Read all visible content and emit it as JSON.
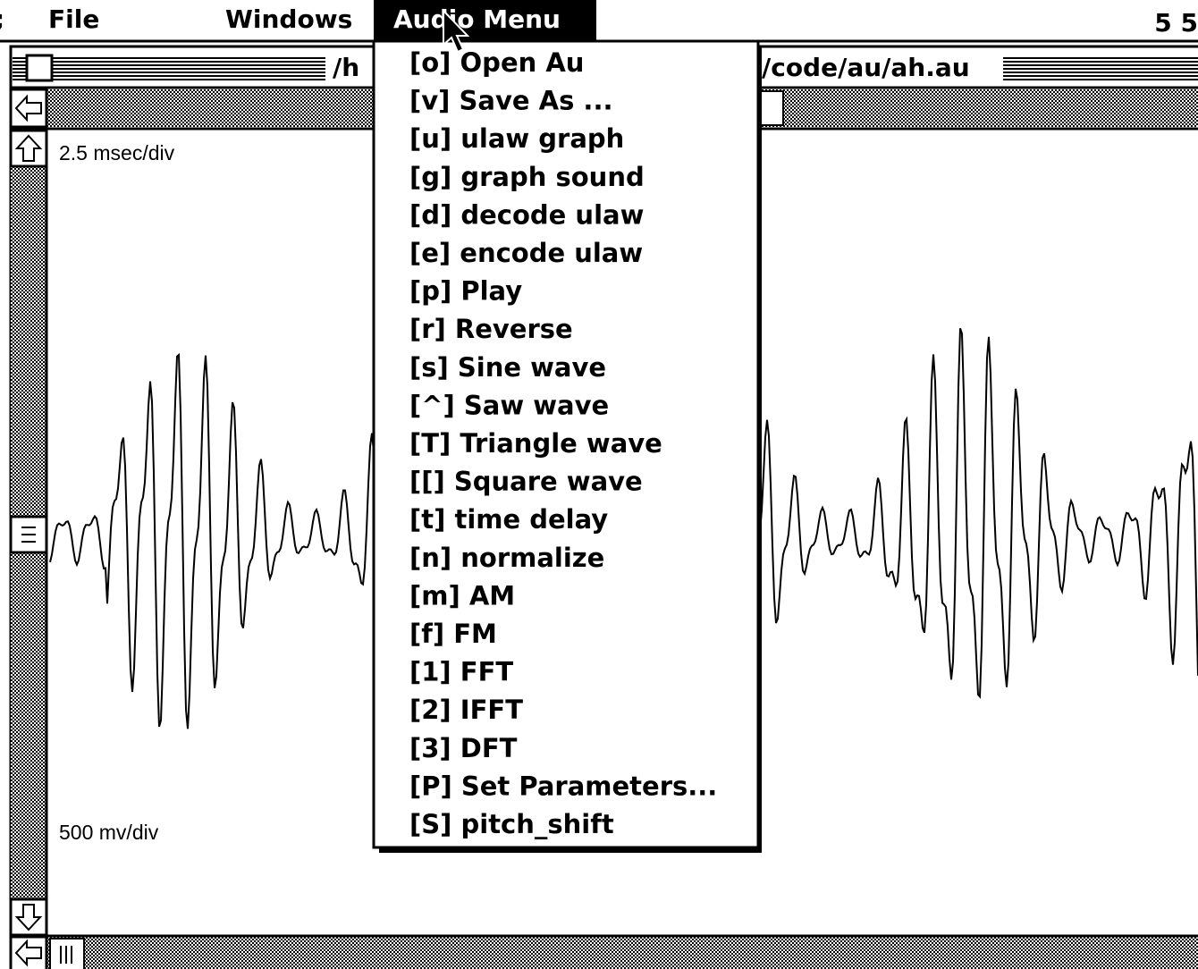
{
  "menu_bar": {
    "apple": ";",
    "items": [
      "File",
      "Windows",
      "Audio Menu"
    ],
    "clock": "5 5"
  },
  "window": {
    "title_left": "/h",
    "title_right": "/code/au/ah.au"
  },
  "graph": {
    "time_scale": "2.5 msec/div",
    "volt_scale": "500 mv/div"
  },
  "menu": {
    "items": [
      "[o] Open Au",
      "[v] Save As ...",
      "[u] ulaw graph",
      "[g] graph sound",
      "[d] decode ulaw",
      "[e] encode ulaw",
      "[p] Play",
      "[r] Reverse",
      "[s] Sine wave",
      "[^] Saw wave",
      "[T] Triangle wave",
      "[[] Square wave",
      "[t] time delay",
      "[n] normalize",
      "[m] AM",
      "[f] FM",
      "[1] FFT",
      "[2] IFFT",
      "[3] DFT",
      "[P] Set Parameters...",
      "[S] pitch_shift"
    ]
  }
}
